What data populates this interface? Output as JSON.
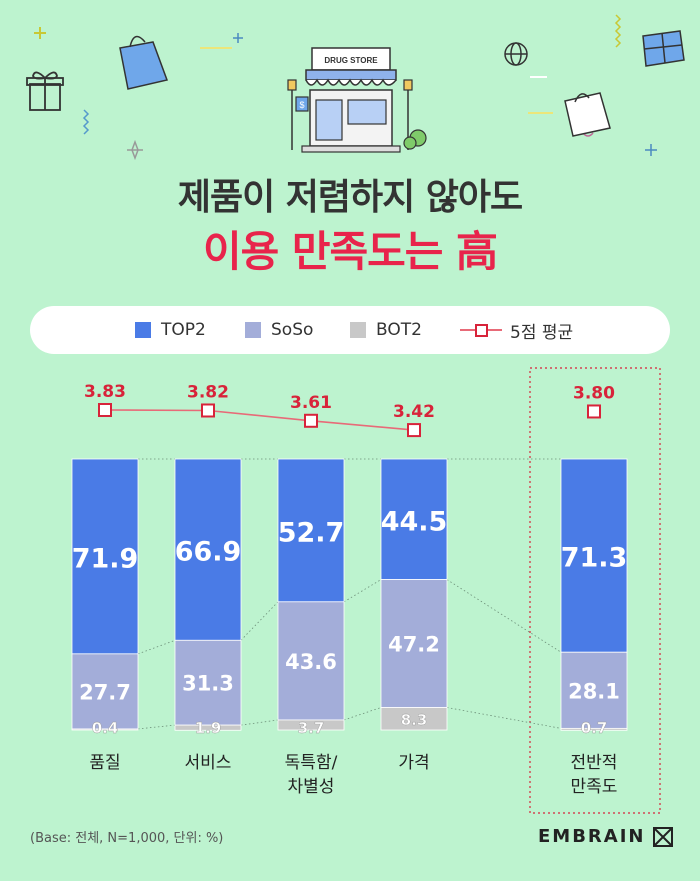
{
  "title": {
    "line1": "제품이 저렴하지 않아도",
    "line2": "이용 만족도는 高"
  },
  "illustration": {
    "store_sign": "DRUG STORE",
    "store_sign_small": "$"
  },
  "legend": {
    "items": [
      "TOP2",
      "SoSo",
      "BOT2",
      "5점 평균"
    ]
  },
  "colors": {
    "top2": "#4a7be6",
    "soso": "#a3add9",
    "bot2": "#c8c8c8",
    "avg": "#d8233a"
  },
  "chart_data": {
    "type": "bar",
    "stacked": true,
    "categories": [
      [
        "품질"
      ],
      [
        "서비스"
      ],
      [
        "독특함/",
        "차별성"
      ],
      [
        "가격"
      ],
      [
        "전반적",
        "만족도"
      ]
    ],
    "series": [
      {
        "name": "TOP2",
        "values": [
          71.9,
          66.9,
          52.7,
          44.5,
          71.3
        ]
      },
      {
        "name": "SoSo",
        "values": [
          27.7,
          31.3,
          43.6,
          47.2,
          28.1
        ]
      },
      {
        "name": "BOT2",
        "values": [
          0.4,
          1.9,
          3.7,
          8.3,
          0.7
        ]
      }
    ],
    "line_series": {
      "name": "5점 평균",
      "values": [
        3.83,
        3.82,
        3.61,
        3.42,
        3.8
      ]
    },
    "ylim": [
      0,
      100
    ],
    "legend_position": "top",
    "grid": false
  },
  "footer": {
    "base_note": "(Base: 전체, N=1,000, 단위: %)",
    "logo_text": "EMBRAIN"
  }
}
